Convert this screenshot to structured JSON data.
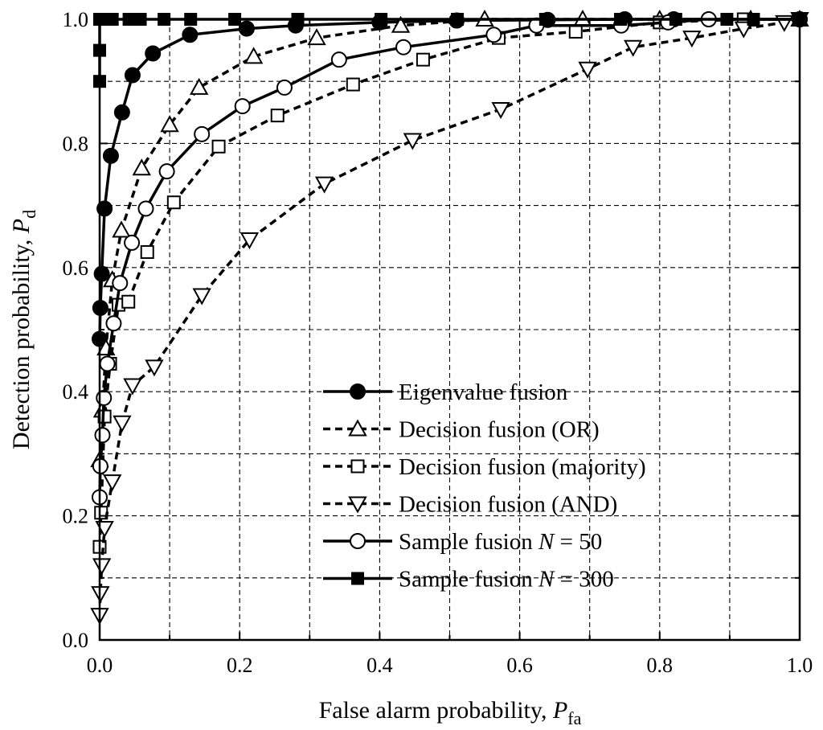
{
  "chart_data": {
    "type": "line",
    "title": "",
    "xlabel": {
      "prefix": "False alarm probability, ",
      "symbol": "P",
      "sub": "fa"
    },
    "ylabel": {
      "prefix": "Detection probability, ",
      "symbol": "P",
      "sub": "d"
    },
    "xlim": [
      0,
      1
    ],
    "ylim": [
      0,
      1
    ],
    "x_ticks": [
      "0.0",
      "0.2",
      "0.4",
      "0.6",
      "0.8",
      "1.0"
    ],
    "y_ticks": [
      "0.0",
      "0.2",
      "0.4",
      "0.6",
      "0.8",
      "1.0"
    ],
    "grid": true,
    "legend_position": "lower-right",
    "series": [
      {
        "name": "Eigenvalue fusion",
        "name_parts": [
          "Eigenvalue fusion"
        ],
        "line": "solid",
        "marker": "circle",
        "filled": true,
        "x": [
          0.0,
          0.001,
          0.003,
          0.007,
          0.016,
          0.032,
          0.047,
          0.076,
          0.129,
          0.21,
          0.28,
          0.4,
          0.51,
          0.64,
          0.75,
          0.82,
          1.0
        ],
        "y": [
          0.485,
          0.535,
          0.59,
          0.695,
          0.78,
          0.85,
          0.91,
          0.945,
          0.975,
          0.985,
          0.99,
          0.995,
          0.998,
          0.999,
          1.0,
          1.0,
          1.0
        ]
      },
      {
        "name": "Decision fusion (OR)",
        "name_parts": [
          "Decision fusion (OR)"
        ],
        "line": "dashed",
        "marker": "triangle-up",
        "filled": false,
        "x": [
          0.0,
          0.004,
          0.009,
          0.018,
          0.031,
          0.06,
          0.1,
          0.142,
          0.22,
          0.31,
          0.43,
          0.55,
          0.69,
          0.8,
          0.93,
          1.0
        ],
        "y": [
          0.29,
          0.37,
          0.47,
          0.58,
          0.66,
          0.76,
          0.83,
          0.89,
          0.94,
          0.97,
          0.99,
          1.0,
          1.0,
          1.0,
          1.0,
          1.0
        ]
      },
      {
        "name": "Decision fusion (majority)",
        "name_parts": [
          "Decision fusion (majority)"
        ],
        "line": "dashed",
        "marker": "square",
        "filled": false,
        "x": [
          0.0,
          0.002,
          0.007,
          0.015,
          0.027,
          0.041,
          0.068,
          0.106,
          0.17,
          0.254,
          0.362,
          0.462,
          0.57,
          0.68,
          0.8,
          0.92,
          1.0
        ],
        "y": [
          0.15,
          0.205,
          0.36,
          0.445,
          0.54,
          0.545,
          0.625,
          0.705,
          0.795,
          0.845,
          0.895,
          0.935,
          0.97,
          0.98,
          0.995,
          1.0,
          1.0
        ]
      },
      {
        "name": "Decision fusion (AND)",
        "name_parts": [
          "Decision fusion (AND)"
        ],
        "line": "dashed",
        "marker": "triangle-down",
        "filled": false,
        "x": [
          0.0,
          0.001,
          0.003,
          0.007,
          0.018,
          0.032,
          0.047,
          0.078,
          0.146,
          0.214,
          0.321,
          0.447,
          0.573,
          0.697,
          0.762,
          0.846,
          0.92,
          0.978,
          1.0
        ],
        "y": [
          0.04,
          0.075,
          0.12,
          0.18,
          0.255,
          0.35,
          0.41,
          0.44,
          0.555,
          0.645,
          0.735,
          0.805,
          0.855,
          0.92,
          0.955,
          0.97,
          0.985,
          0.995,
          1.0
        ]
      },
      {
        "name": "Sample fusion N = 50",
        "name_parts": [
          "Sample fusion ",
          "N",
          " = 50"
        ],
        "line": "solid",
        "marker": "circle",
        "filled": false,
        "x": [
          0.0,
          0.001,
          0.004,
          0.006,
          0.011,
          0.02,
          0.029,
          0.046,
          0.066,
          0.096,
          0.146,
          0.204,
          0.264,
          0.342,
          0.434,
          0.563,
          0.624,
          0.745,
          0.812,
          0.87,
          1.0
        ],
        "y": [
          0.23,
          0.28,
          0.33,
          0.39,
          0.445,
          0.51,
          0.575,
          0.64,
          0.695,
          0.755,
          0.815,
          0.86,
          0.89,
          0.935,
          0.955,
          0.975,
          0.99,
          0.99,
          0.995,
          1.0,
          1.0
        ]
      },
      {
        "name": "Sample fusion N = 300",
        "name_parts": [
          "Sample fusion ",
          "N",
          " = 300"
        ],
        "line": "solid",
        "marker": "square",
        "filled": true,
        "x": [
          0.0,
          0.0,
          0.0,
          0.006,
          0.018,
          0.042,
          0.058,
          0.092,
          0.13,
          0.193,
          0.283,
          0.402,
          0.511,
          0.637,
          0.744,
          0.823,
          0.896,
          0.934,
          1.0
        ],
        "y": [
          0.9,
          0.95,
          1.0,
          1.0,
          1.0,
          1.0,
          1.0,
          1.0,
          1.0,
          1.0,
          1.0,
          1.0,
          1.0,
          1.0,
          1.0,
          1.0,
          1.0,
          1.0,
          1.0
        ]
      }
    ]
  }
}
